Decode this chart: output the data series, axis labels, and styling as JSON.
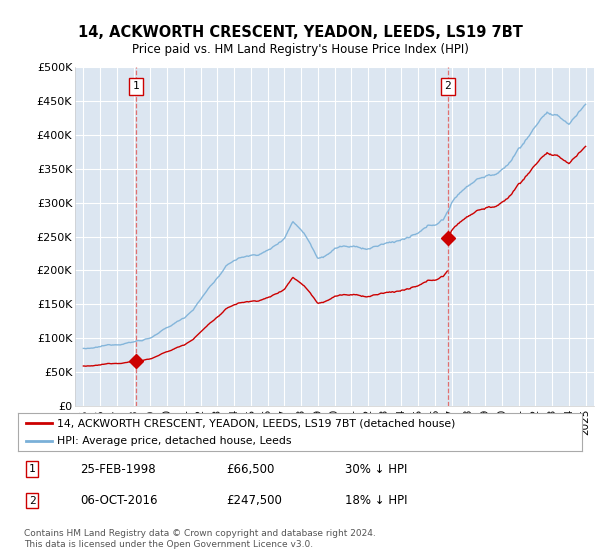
{
  "title": "14, ACKWORTH CRESCENT, YEADON, LEEDS, LS19 7BT",
  "subtitle": "Price paid vs. HM Land Registry's House Price Index (HPI)",
  "ylim": [
    0,
    500000
  ],
  "yticks": [
    0,
    50000,
    100000,
    150000,
    200000,
    250000,
    300000,
    350000,
    400000,
    450000,
    500000
  ],
  "ytick_labels": [
    "£0",
    "£50K",
    "£100K",
    "£150K",
    "£200K",
    "£250K",
    "£300K",
    "£350K",
    "£400K",
    "£450K",
    "£500K"
  ],
  "hpi_color": "#7ab0d8",
  "price_color": "#cc0000",
  "plot_bg": "#dce6f1",
  "fig_bg": "#ffffff",
  "grid_color": "#ffffff",
  "sale1_price": 66500,
  "sale1_year": 1998.15,
  "sale2_price": 247500,
  "sale2_year": 2016.77,
  "legend_line1": "14, ACKWORTH CRESCENT, YEADON, LEEDS, LS19 7BT (detached house)",
  "legend_line2": "HPI: Average price, detached house, Leeds",
  "footer": "Contains HM Land Registry data © Crown copyright and database right 2024.\nThis data is licensed under the Open Government Licence v3.0.",
  "table_row1": [
    "1",
    "25-FEB-1998",
    "£66,500",
    "30% ↓ HPI"
  ],
  "table_row2": [
    "2",
    "06-OCT-2016",
    "£247,500",
    "18% ↓ HPI"
  ],
  "hpi_base_points": [
    [
      1995.0,
      85000
    ],
    [
      1995.5,
      84000
    ],
    [
      1996.0,
      86000
    ],
    [
      1996.5,
      88000
    ],
    [
      1997.0,
      90000
    ],
    [
      1997.5,
      93000
    ],
    [
      1998.0,
      95000
    ],
    [
      1998.5,
      98000
    ],
    [
      1999.0,
      102000
    ],
    [
      1999.5,
      108000
    ],
    [
      2000.0,
      115000
    ],
    [
      2000.5,
      122000
    ],
    [
      2001.0,
      130000
    ],
    [
      2001.5,
      142000
    ],
    [
      2002.0,
      158000
    ],
    [
      2002.5,
      175000
    ],
    [
      2003.0,
      190000
    ],
    [
      2003.5,
      205000
    ],
    [
      2004.0,
      215000
    ],
    [
      2004.5,
      220000
    ],
    [
      2005.0,
      222000
    ],
    [
      2005.5,
      225000
    ],
    [
      2006.0,
      230000
    ],
    [
      2006.5,
      238000
    ],
    [
      2007.0,
      250000
    ],
    [
      2007.5,
      275000
    ],
    [
      2008.0,
      265000
    ],
    [
      2008.3,
      255000
    ],
    [
      2008.7,
      238000
    ],
    [
      2009.0,
      225000
    ],
    [
      2009.3,
      228000
    ],
    [
      2009.7,
      235000
    ],
    [
      2010.0,
      240000
    ],
    [
      2010.5,
      245000
    ],
    [
      2011.0,
      242000
    ],
    [
      2011.5,
      240000
    ],
    [
      2012.0,
      238000
    ],
    [
      2012.5,
      242000
    ],
    [
      2013.0,
      245000
    ],
    [
      2013.5,
      248000
    ],
    [
      2014.0,
      252000
    ],
    [
      2014.5,
      255000
    ],
    [
      2015.0,
      258000
    ],
    [
      2015.5,
      265000
    ],
    [
      2016.0,
      270000
    ],
    [
      2016.5,
      278000
    ],
    [
      2017.0,
      302000
    ],
    [
      2017.5,
      318000
    ],
    [
      2018.0,
      330000
    ],
    [
      2018.5,
      340000
    ],
    [
      2019.0,
      345000
    ],
    [
      2019.5,
      348000
    ],
    [
      2020.0,
      352000
    ],
    [
      2020.5,
      365000
    ],
    [
      2021.0,
      385000
    ],
    [
      2021.5,
      400000
    ],
    [
      2022.0,
      418000
    ],
    [
      2022.3,
      430000
    ],
    [
      2022.7,
      440000
    ],
    [
      2023.0,
      435000
    ],
    [
      2023.5,
      428000
    ],
    [
      2024.0,
      420000
    ],
    [
      2024.5,
      435000
    ],
    [
      2025.0,
      450000
    ]
  ]
}
